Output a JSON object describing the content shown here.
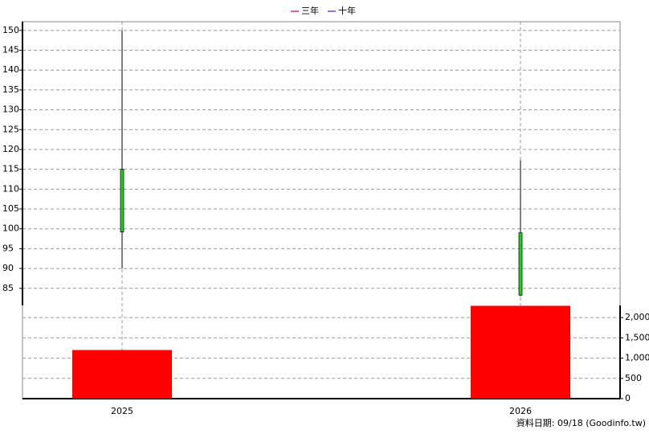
{
  "chart_data": {
    "type": "candlestick",
    "legend": [
      {
        "name": "三年",
        "color": "#e0306a"
      },
      {
        "name": "十年",
        "color": "#7b3fc4"
      }
    ],
    "categories": [
      "2025",
      "2026"
    ],
    "series": [
      {
        "type": "candlestick",
        "up_color": "#ff0000",
        "down_color": "#22cc22",
        "open": [
          115,
          99
        ],
        "high": [
          150,
          117.3
        ],
        "low": [
          90,
          83
        ],
        "close": [
          99.2,
          83.3
        ]
      },
      {
        "type": "bar",
        "axis": "y2",
        "color": "#ff0000",
        "values": [
          1200,
          2290
        ]
      }
    ],
    "ylim": [
      80.7,
      152.2
    ],
    "yticks": [
      85,
      90,
      95,
      100,
      105,
      110,
      115,
      120,
      125,
      130,
      135,
      140,
      145,
      150
    ],
    "y2lim": [
      0,
      2300
    ],
    "y2ticks": [
      0,
      500,
      {
        "value": 1000,
        "label": "1,000"
      },
      {
        "value": 1500,
        "label": "1,500"
      },
      {
        "value": 2000,
        "label": "2,000"
      }
    ],
    "grid": true,
    "footer": "資料日期: 09/18  (Goodinfo.tw)"
  }
}
